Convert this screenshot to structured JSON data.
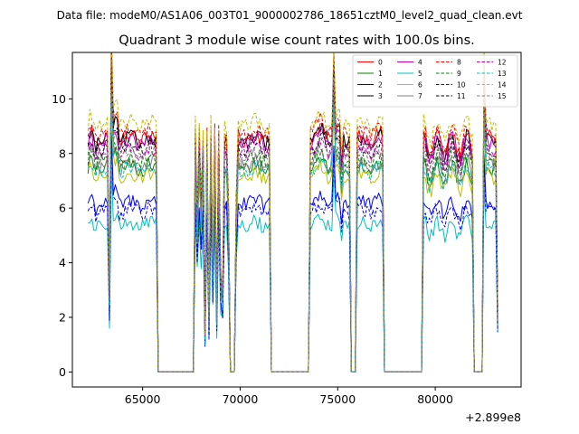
{
  "chart_data": {
    "type": "line",
    "suptitle": "Data file: modeM0/AS1A06_003T01_9000002786_18651cztM0_level2_quad_clean.evt",
    "title": "Quadrant 3 module wise count rates with 100.0s bins.",
    "xlabel": "",
    "ylabel": "",
    "x_offset_label": "+2.899e8",
    "xlim": [
      61400,
      84400
    ],
    "ylim": [
      -0.55,
      11.7
    ],
    "x_ticks": [
      65000,
      70000,
      75000,
      80000
    ],
    "x_tick_labels": [
      "65000",
      "70000",
      "75000",
      "80000"
    ],
    "y_ticks": [
      0,
      2,
      4,
      6,
      8,
      10
    ],
    "y_tick_labels": [
      "0",
      "2",
      "4",
      "6",
      "8",
      "10"
    ],
    "legend_position": "top-right",
    "x_start": 62200,
    "x_step": 100,
    "segments": [
      {
        "type": "data",
        "from": 62200,
        "to": 65700
      },
      {
        "type": "zero",
        "from": 65800,
        "to": 67600
      },
      {
        "type": "data",
        "from": 67700,
        "to": 69400
      },
      {
        "type": "zero",
        "from": 69500,
        "to": 69700
      },
      {
        "type": "data",
        "from": 69800,
        "to": 71500
      },
      {
        "type": "zero",
        "from": 71600,
        "to": 73500
      },
      {
        "type": "data",
        "from": 73600,
        "to": 75600
      },
      {
        "type": "zero",
        "from": 75700,
        "to": 75900
      },
      {
        "type": "data",
        "from": 76000,
        "to": 77300
      },
      {
        "type": "zero",
        "from": 77400,
        "to": 79300
      },
      {
        "type": "data",
        "from": 79400,
        "to": 81900
      },
      {
        "type": "zero",
        "from": 82000,
        "to": 82400
      },
      {
        "type": "data",
        "from": 82500,
        "to": 83200
      }
    ],
    "dips": [
      {
        "x": 63300,
        "v": 2.5
      },
      {
        "x": 67800,
        "v": 5.2
      },
      {
        "x": 68000,
        "v": 5.6
      },
      {
        "x": 68200,
        "v": 1.3
      },
      {
        "x": 68400,
        "v": 1.7
      },
      {
        "x": 68600,
        "v": 3.4
      },
      {
        "x": 68800,
        "v": 1.8
      },
      {
        "x": 69000,
        "v": 3.2
      },
      {
        "x": 69100,
        "v": 2.6
      },
      {
        "x": 69400,
        "v": 5.5
      },
      {
        "x": 69800,
        "v": 5.6
      },
      {
        "x": 75200,
        "v": 6.8
      },
      {
        "x": 83200,
        "v": 2.0
      }
    ],
    "spikes": [
      {
        "x": 63400,
        "v": 10.8
      },
      {
        "x": 74800,
        "v": 10.2
      },
      {
        "x": 82500,
        "v": 10.0
      }
    ],
    "series": [
      {
        "name": "0",
        "color": "#ff0000",
        "dash": false,
        "level": 8.6
      },
      {
        "name": "1",
        "color": "#008000",
        "dash": false,
        "level": 7.5
      },
      {
        "name": "2",
        "color": "#0000ff",
        "dash": false,
        "level": 6.2
      },
      {
        "name": "3",
        "color": "#000000",
        "dash": false,
        "level": 8.5
      },
      {
        "name": "4",
        "color": "#bf00bf",
        "dash": false,
        "level": 8.4
      },
      {
        "name": "5",
        "color": "#00bfbf",
        "dash": false,
        "level": 5.4
      },
      {
        "name": "6",
        "color": "#bfbf00",
        "dash": false,
        "level": 7.2
      },
      {
        "name": "7",
        "color": "#808080",
        "dash": false,
        "level": 7.6
      },
      {
        "name": "8",
        "color": "#ff0000",
        "dash": true,
        "level": 8.8
      },
      {
        "name": "9",
        "color": "#008000",
        "dash": true,
        "level": 7.8
      },
      {
        "name": "10",
        "color": "#0000ff",
        "dash": true,
        "level": 5.9
      },
      {
        "name": "11",
        "color": "#000000",
        "dash": true,
        "level": 8.2
      },
      {
        "name": "12",
        "color": "#bf00bf",
        "dash": true,
        "level": 8.1
      },
      {
        "name": "13",
        "color": "#00bfbf",
        "dash": true,
        "level": 7.4
      },
      {
        "name": "14",
        "color": "#bfbf00",
        "dash": true,
        "level": 9.1
      },
      {
        "name": "15",
        "color": "#808080",
        "dash": true,
        "level": 8.0
      }
    ]
  }
}
